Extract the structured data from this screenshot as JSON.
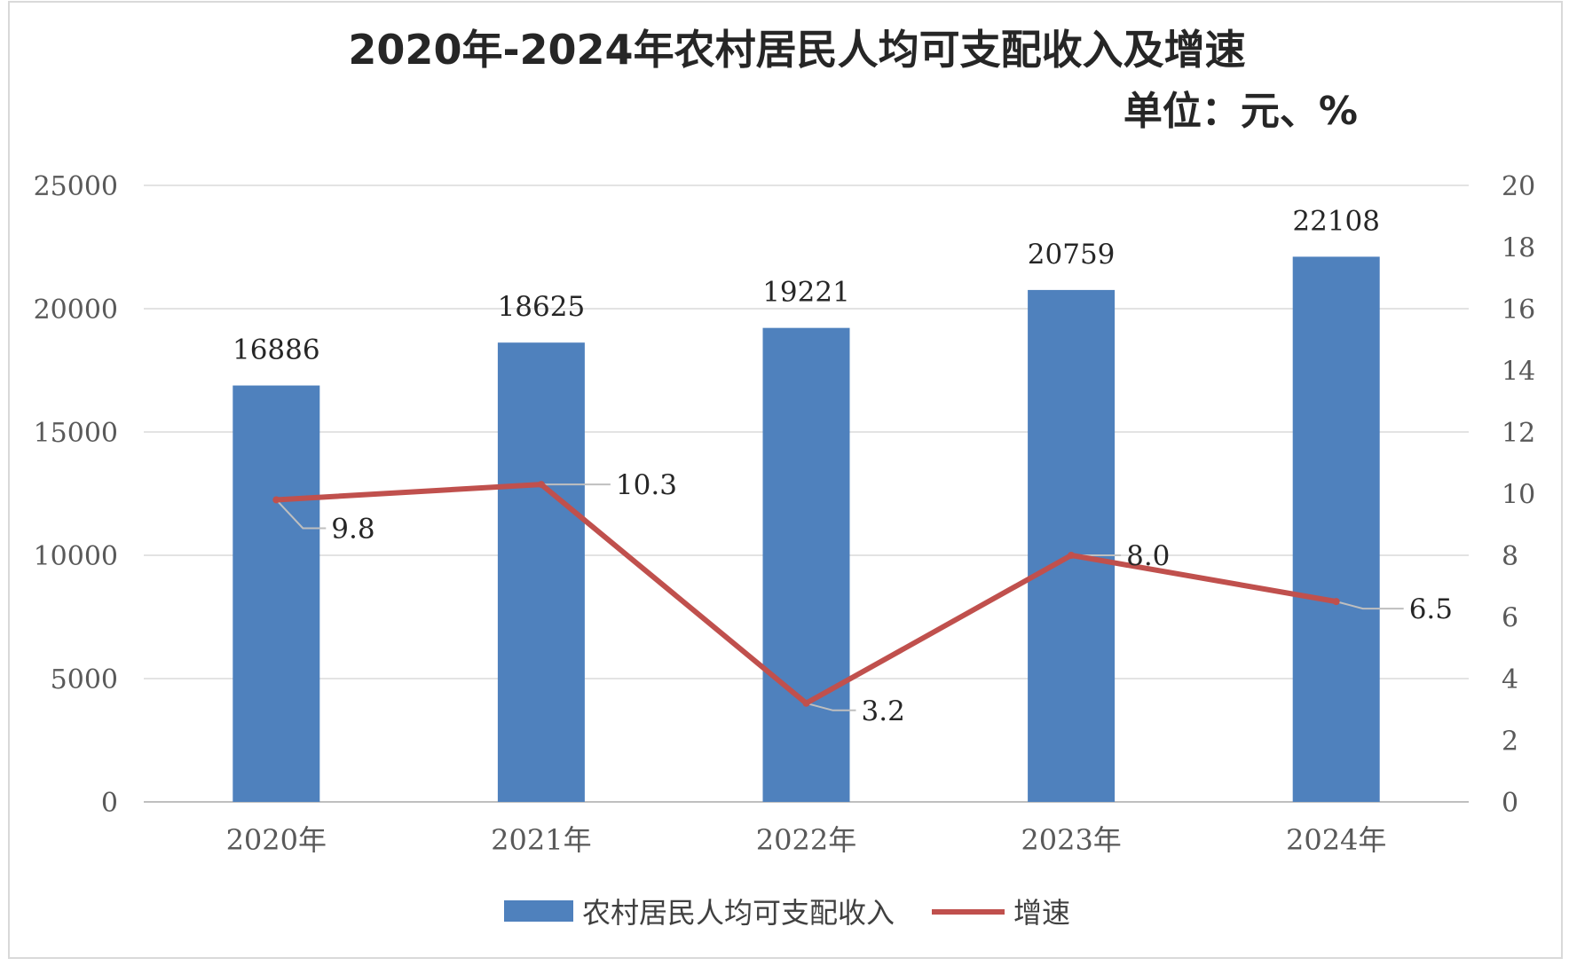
{
  "chart_data": {
    "type": "bar",
    "title": "2020年-2024年农村居民人均可支配收入及增速",
    "subtitle": "单位：元、%",
    "categories": [
      "2020年",
      "2021年",
      "2022年",
      "2023年",
      "2024年"
    ],
    "series": [
      {
        "name": "农村居民人均可支配收入",
        "type": "bar",
        "axis": "left",
        "color": "#4F81BD",
        "values": [
          16886,
          18625,
          19221,
          20759,
          22108
        ],
        "labels": [
          "16886",
          "18625",
          "19221",
          "20759",
          "22108"
        ]
      },
      {
        "name": "增速",
        "type": "line",
        "axis": "right",
        "color": "#C0504D",
        "values": [
          9.8,
          10.3,
          3.2,
          8.0,
          6.5
        ],
        "labels": [
          "9.8",
          "10.3",
          "3.2",
          "8.0",
          "6.5"
        ]
      }
    ],
    "y_left": {
      "min": 0,
      "max": 25000,
      "ticks": [
        "0",
        "5000",
        "10000",
        "15000",
        "20000",
        "25000"
      ]
    },
    "y_right": {
      "min": 0,
      "max": 20,
      "ticks": [
        "0",
        "2",
        "4",
        "6",
        "8",
        "10",
        "12",
        "14",
        "16",
        "18",
        "20"
      ]
    },
    "grid": true,
    "legend_position": "bottom"
  }
}
